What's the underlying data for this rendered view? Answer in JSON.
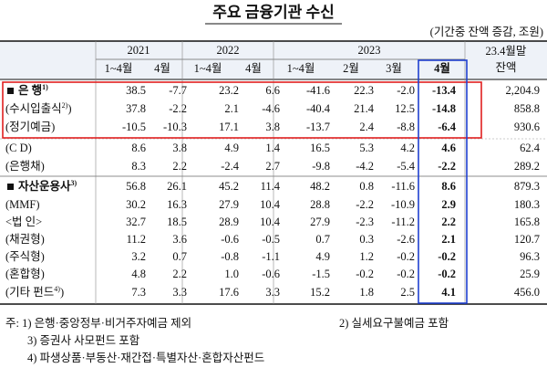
{
  "title": "주요 금융기관 수신",
  "unit": "(기간중 잔액 증감, 조원)",
  "header": {
    "years": [
      "2021",
      "2022",
      "2023"
    ],
    "balance": [
      "23.4월말",
      "잔액"
    ],
    "periods": [
      "1~4월",
      "4월",
      "1~4월",
      "4월",
      "1~4월",
      "2월",
      "3월",
      "4월"
    ]
  },
  "rows": [
    {
      "label": "은 행",
      "sup": "1)",
      "values": [
        "38.5",
        "-7.7",
        "23.2",
        "6.6",
        "-41.6",
        "22.3",
        "-2.0",
        "-13.4",
        "2,204.9"
      ]
    },
    {
      "label": "(수시입출식",
      "sup": "2)",
      "close": ")",
      "values": [
        "37.8",
        "-2.2",
        "2.1",
        "-4.6",
        "-40.4",
        "21.4",
        "12.5",
        "-14.8",
        "858.8"
      ]
    },
    {
      "label": "(정기예금)",
      "values": [
        "-10.5",
        "-10.3",
        "17.1",
        "3.8",
        "-13.7",
        "2.4",
        "-8.8",
        "-6.4",
        "930.6"
      ]
    },
    {
      "label": "(C D)",
      "values": [
        "8.6",
        "3.8",
        "4.9",
        "1.4",
        "16.5",
        "5.3",
        "4.2",
        "4.6",
        "62.4"
      ]
    },
    {
      "label": "(은행채)",
      "values": [
        "8.3",
        "2.2",
        "-2.4",
        "2.7",
        "-9.8",
        "-4.2",
        "-5.4",
        "-2.2",
        "289.2"
      ]
    },
    {
      "label": "자산운용사",
      "sup": "3)",
      "values": [
        "56.8",
        "26.1",
        "45.2",
        "11.4",
        "48.2",
        "0.8",
        "-11.6",
        "8.6",
        "879.3"
      ]
    },
    {
      "label": "(MMF)",
      "values": [
        "30.2",
        "16.3",
        "27.9",
        "10.4",
        "28.8",
        "-2.2",
        "-10.9",
        "2.9",
        "180.3"
      ]
    },
    {
      "label": "<법 인>",
      "values": [
        "32.7",
        "18.5",
        "28.9",
        "10.4",
        "27.9",
        "-2.3",
        "-11.2",
        "2.2",
        "165.8"
      ]
    },
    {
      "label": "(채권형)",
      "values": [
        "11.2",
        "3.6",
        "-0.6",
        "-0.5",
        "0.7",
        "0.3",
        "-2.6",
        "2.1",
        "120.7"
      ]
    },
    {
      "label": "(주식형)",
      "values": [
        "3.2",
        "0.7",
        "-0.8",
        "-1.1",
        "4.9",
        "1.2",
        "-0.2",
        "-0.2",
        "96.3"
      ]
    },
    {
      "label": "(혼합형)",
      "values": [
        "4.8",
        "2.2",
        "1.0",
        "-0.6",
        "-1.5",
        "-0.2",
        "-0.2",
        "-0.2",
        "25.9"
      ]
    },
    {
      "label": "(기타 펀드",
      "sup": "4)",
      "close": ")",
      "values": [
        "7.3",
        "3.3",
        "17.6",
        "3.3",
        "15.2",
        "1.8",
        "2.5",
        "4.1",
        "456.0"
      ]
    }
  ],
  "notes": [
    "주: 1) 은행·중앙정부·비거주자예금 제외",
    "2) 실세요구불예금 포함",
    "3) 증권사 사모펀드 포함",
    "4) 파생상품·부동산·재간접·특별자산·혼합자산펀드"
  ]
}
